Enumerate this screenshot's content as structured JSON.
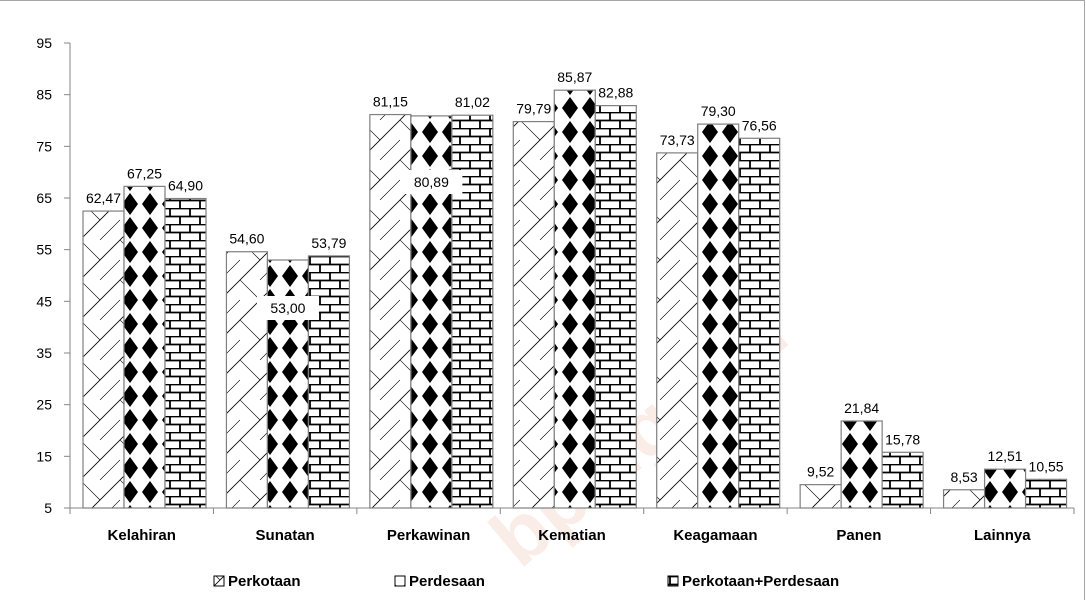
{
  "chart_data": {
    "type": "bar",
    "categories": [
      "Kelahiran",
      "Sunatan",
      "Perkawinan",
      "Kematian",
      "Keagamaan",
      "Panen",
      "Lainnya"
    ],
    "series": [
      {
        "name": "Perkotaan",
        "values": [
          62.47,
          54.6,
          81.15,
          79.79,
          73.73,
          9.52,
          8.53
        ],
        "labels": [
          "62,47",
          "54,60",
          "81,15",
          "79,79",
          "73,73",
          "9,52",
          "8,53"
        ]
      },
      {
        "name": "Perdesaan",
        "values": [
          67.25,
          53.0,
          80.89,
          85.87,
          79.3,
          21.84,
          12.51
        ],
        "labels": [
          "67,25",
          "53,00",
          "80,89",
          "85,87",
          "79,30",
          "21,84",
          "12,51"
        ]
      },
      {
        "name": "Perkotaan+Perdesaan",
        "values": [
          64.9,
          53.79,
          81.02,
          82.88,
          76.56,
          15.78,
          10.55
        ],
        "labels": [
          "64,90",
          "53,79",
          "81,02",
          "82,88",
          "76,56",
          "15,78",
          "10,55"
        ]
      }
    ],
    "ylim": [
      5,
      95
    ],
    "yticks": [
      "5",
      "15",
      "25",
      "35",
      "45",
      "55",
      "65",
      "75",
      "85",
      "95"
    ],
    "grid": false,
    "legend_position": "bottom",
    "title": "",
    "xlabel": "",
    "ylabel": ""
  },
  "watermark": "bps.go.id"
}
